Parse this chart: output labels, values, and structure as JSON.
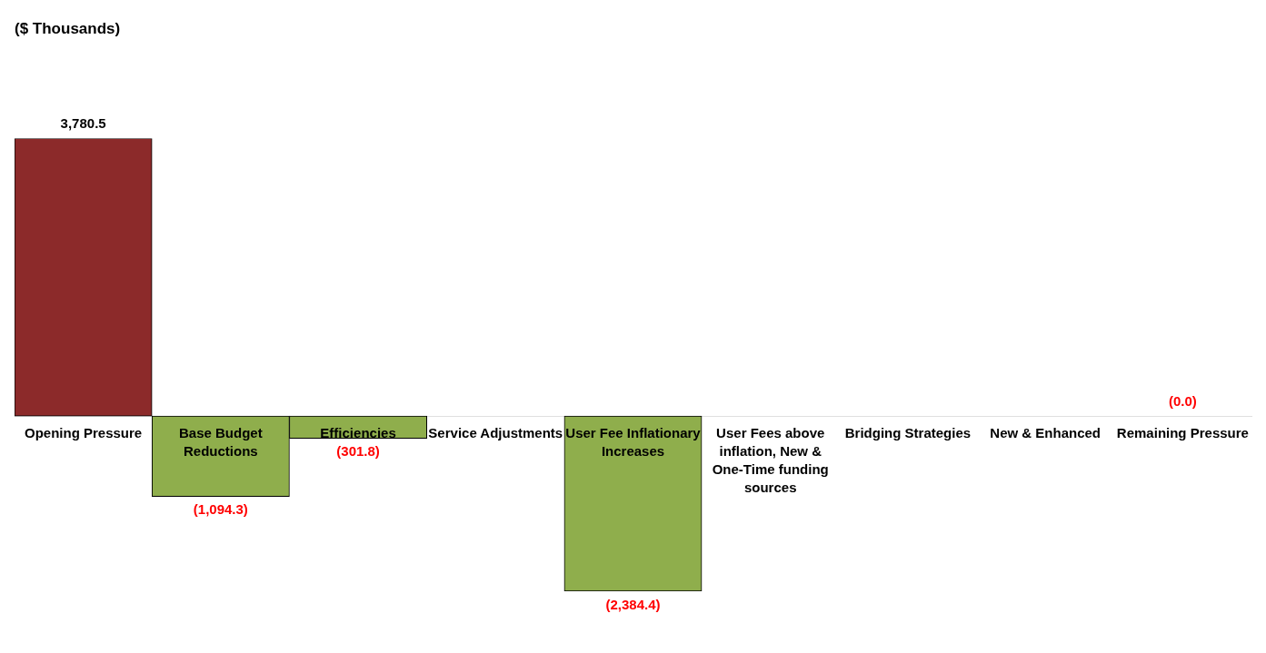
{
  "chart_data": {
    "type": "bar",
    "title": "($ Thousands)",
    "categories": [
      "Opening Pressure",
      "Base Budget Reductions",
      "Efficiencies",
      "Service Adjustments",
      "User Fee Inflationary Increases",
      "User Fees above inflation, New & One-Time funding sources",
      "Bridging Strategies",
      "New & Enhanced",
      "Remaining Pressure"
    ],
    "values": [
      3780.5,
      -1094.3,
      -301.8,
      null,
      -2384.4,
      null,
      null,
      null,
      0
    ],
    "value_labels": [
      "3,780.5",
      "(1,094.3)",
      "(301.8)",
      null,
      "(2,384.4)",
      null,
      null,
      null,
      "(0.0)"
    ],
    "colors": [
      "#8c2a2a",
      "#8fae4c",
      "#8fae4c",
      "#8fae4c",
      "#8fae4c",
      "#8fae4c",
      "#8fae4c",
      "#8fae4c",
      "#8fae4c"
    ],
    "grid": false,
    "legend": false
  }
}
